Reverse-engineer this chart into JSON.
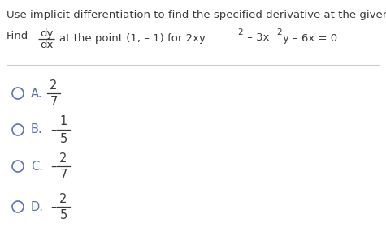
{
  "title_text": "Use implicit differentiation to find the specified derivative at the given point.",
  "options": [
    {
      "label": "A.",
      "sign": "",
      "numerator": "2",
      "denominator": "7"
    },
    {
      "label": "B.",
      "sign": "–",
      "numerator": "1",
      "denominator": "5"
    },
    {
      "label": "C.",
      "sign": "–",
      "numerator": "2",
      "denominator": "7"
    },
    {
      "label": "D.",
      "sign": "–",
      "numerator": "2",
      "denominator": "5"
    }
  ],
  "bg_color": "#ffffff",
  "text_color": "#3a3a3a",
  "circle_color": "#5b6fbf",
  "label_color": "#5b6fbf",
  "title_fontsize": 9.5,
  "body_fontsize": 9.5,
  "option_fontsize": 10.5,
  "small_fontsize": 7.5
}
